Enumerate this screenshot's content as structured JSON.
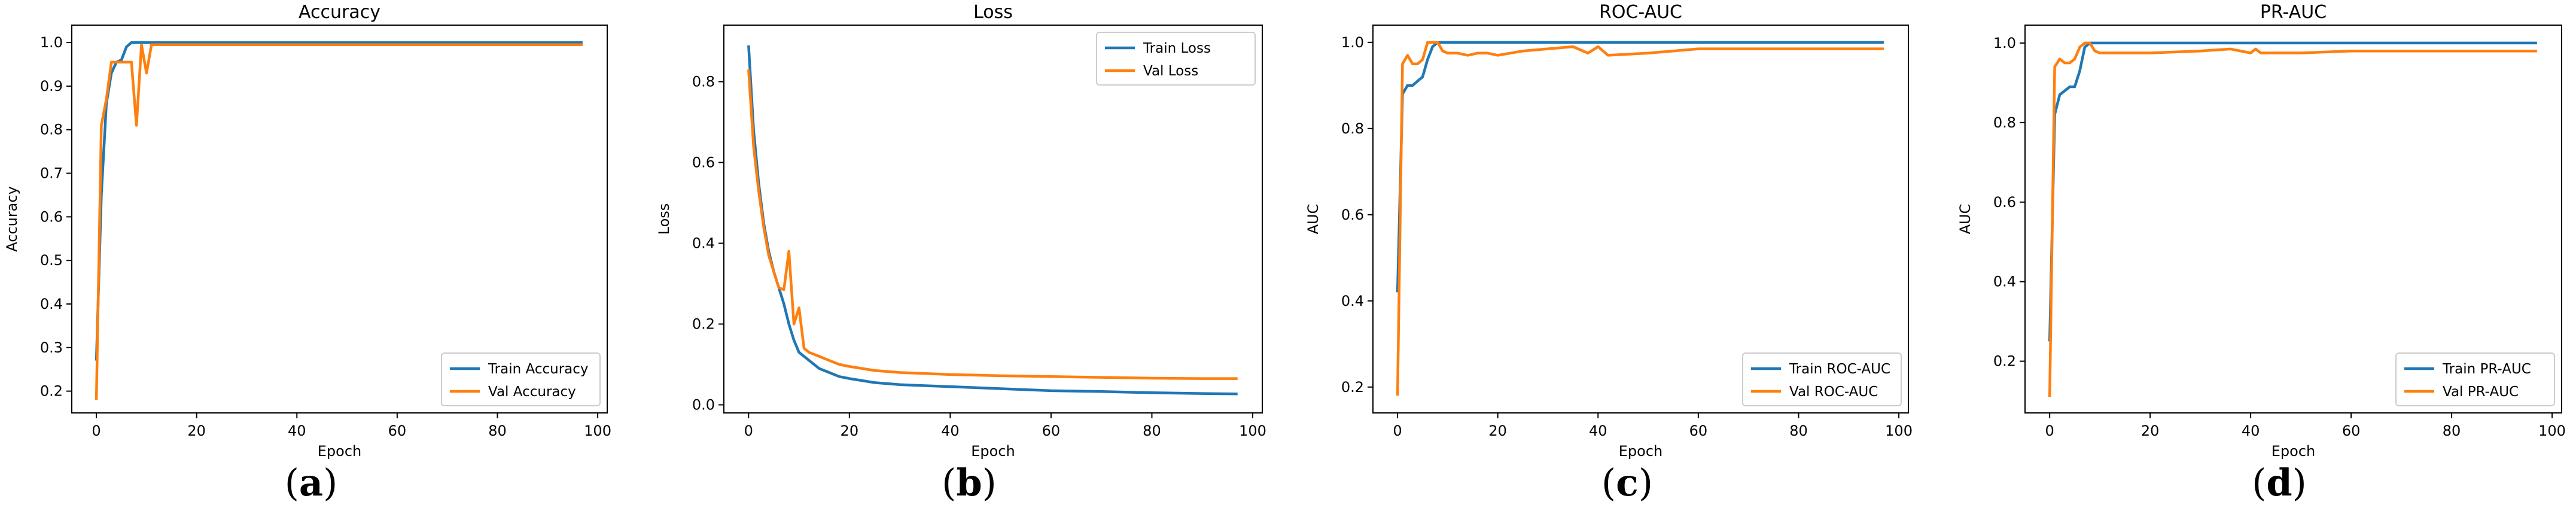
{
  "colors": {
    "train": "#1f77b4",
    "val": "#ff7f0e"
  },
  "chart_data": [
    {
      "type": "line",
      "panel_label": "a",
      "title": "Accuracy",
      "xlabel": "Epoch",
      "ylabel": "Accuracy",
      "xlim": [
        -4.9,
        101.9
      ],
      "ylim": [
        0.15,
        1.04
      ],
      "xticks": [
        0,
        20,
        40,
        60,
        80,
        100
      ],
      "yticks": [
        0.2,
        0.3,
        0.4,
        0.5,
        0.6,
        0.7,
        0.8,
        0.9,
        1.0
      ],
      "ytick_labels": [
        "0.2",
        "0.3",
        "0.4",
        "0.5",
        "0.6",
        "0.7",
        "0.8",
        "0.9",
        "1.0"
      ],
      "legend_position": "lower-right",
      "series": [
        {
          "name": "Train Accuracy",
          "color": "#1f77b4",
          "points": [
            [
              0,
              0.27
            ],
            [
              1,
              0.65
            ],
            [
              2,
              0.86
            ],
            [
              3,
              0.93
            ],
            [
              4,
              0.955
            ],
            [
              5,
              0.96
            ],
            [
              6,
              0.99
            ],
            [
              7,
              1.0
            ],
            [
              8,
              1.0
            ],
            [
              97,
              1.0
            ]
          ]
        },
        {
          "name": "Val Accuracy",
          "color": "#ff7f0e",
          "points": [
            [
              0,
              0.18
            ],
            [
              1,
              0.81
            ],
            [
              2,
              0.87
            ],
            [
              3,
              0.955
            ],
            [
              4,
              0.955
            ],
            [
              5,
              0.955
            ],
            [
              6,
              0.955
            ],
            [
              7,
              0.955
            ],
            [
              8,
              0.81
            ],
            [
              9,
              0.995
            ],
            [
              10,
              0.93
            ],
            [
              11,
              0.995
            ],
            [
              12,
              0.995
            ],
            [
              97,
              0.995
            ]
          ]
        }
      ]
    },
    {
      "type": "line",
      "panel_label": "b",
      "title": "Loss",
      "xlabel": "Epoch",
      "ylabel": "Loss",
      "xlim": [
        -4.9,
        101.9
      ],
      "ylim": [
        -0.02,
        0.94
      ],
      "xticks": [
        0,
        20,
        40,
        60,
        80,
        100
      ],
      "yticks": [
        0.0,
        0.2,
        0.4,
        0.6,
        0.8
      ],
      "ytick_labels": [
        "0.0",
        "0.2",
        "0.4",
        "0.6",
        "0.8"
      ],
      "legend_position": "upper-right",
      "series": [
        {
          "name": "Train Loss",
          "color": "#1f77b4",
          "points": [
            [
              0,
              0.89
            ],
            [
              1,
              0.68
            ],
            [
              2,
              0.55
            ],
            [
              3,
              0.45
            ],
            [
              4,
              0.38
            ],
            [
              5,
              0.33
            ],
            [
              6,
              0.29
            ],
            [
              7,
              0.25
            ],
            [
              8,
              0.2
            ],
            [
              9,
              0.16
            ],
            [
              10,
              0.13
            ],
            [
              12,
              0.11
            ],
            [
              14,
              0.09
            ],
            [
              16,
              0.08
            ],
            [
              18,
              0.07
            ],
            [
              20,
              0.065
            ],
            [
              25,
              0.055
            ],
            [
              30,
              0.05
            ],
            [
              40,
              0.045
            ],
            [
              50,
              0.04
            ],
            [
              60,
              0.035
            ],
            [
              70,
              0.033
            ],
            [
              80,
              0.03
            ],
            [
              90,
              0.028
            ],
            [
              97,
              0.027
            ]
          ]
        },
        {
          "name": "Val Loss",
          "color": "#ff7f0e",
          "points": [
            [
              0,
              0.83
            ],
            [
              1,
              0.64
            ],
            [
              2,
              0.53
            ],
            [
              3,
              0.44
            ],
            [
              4,
              0.37
            ],
            [
              5,
              0.33
            ],
            [
              6,
              0.29
            ],
            [
              7,
              0.285
            ],
            [
              8,
              0.38
            ],
            [
              9,
              0.2
            ],
            [
              10,
              0.24
            ],
            [
              11,
              0.14
            ],
            [
              12,
              0.13
            ],
            [
              14,
              0.12
            ],
            [
              16,
              0.11
            ],
            [
              18,
              0.1
            ],
            [
              20,
              0.095
            ],
            [
              25,
              0.085
            ],
            [
              30,
              0.08
            ],
            [
              40,
              0.075
            ],
            [
              50,
              0.072
            ],
            [
              60,
              0.07
            ],
            [
              70,
              0.068
            ],
            [
              80,
              0.066
            ],
            [
              90,
              0.065
            ],
            [
              97,
              0.065
            ]
          ]
        }
      ]
    },
    {
      "type": "line",
      "panel_label": "c",
      "title": "ROC-AUC",
      "xlabel": "Epoch",
      "ylabel": "AUC",
      "xlim": [
        -4.9,
        101.9
      ],
      "ylim": [
        0.14,
        1.04
      ],
      "xticks": [
        0,
        20,
        40,
        60,
        80,
        100
      ],
      "yticks": [
        0.2,
        0.4,
        0.6,
        0.8,
        1.0
      ],
      "ytick_labels": [
        "0.2",
        "0.4",
        "0.6",
        "0.8",
        "1.0"
      ],
      "legend_position": "lower-right",
      "series": [
        {
          "name": "Train ROC-AUC",
          "color": "#1f77b4",
          "points": [
            [
              0,
              0.42
            ],
            [
              1,
              0.88
            ],
            [
              2,
              0.9
            ],
            [
              3,
              0.9
            ],
            [
              4,
              0.91
            ],
            [
              5,
              0.92
            ],
            [
              6,
              0.96
            ],
            [
              7,
              0.99
            ],
            [
              8,
              1.0
            ],
            [
              97,
              1.0
            ]
          ]
        },
        {
          "name": "Val ROC-AUC",
          "color": "#ff7f0e",
          "points": [
            [
              0,
              0.18
            ],
            [
              1,
              0.95
            ],
            [
              2,
              0.97
            ],
            [
              3,
              0.95
            ],
            [
              4,
              0.95
            ],
            [
              5,
              0.96
            ],
            [
              6,
              1.0
            ],
            [
              7,
              1.0
            ],
            [
              8,
              1.0
            ],
            [
              9,
              0.98
            ],
            [
              10,
              0.975
            ],
            [
              12,
              0.975
            ],
            [
              14,
              0.97
            ],
            [
              16,
              0.975
            ],
            [
              18,
              0.975
            ],
            [
              20,
              0.97
            ],
            [
              25,
              0.98
            ],
            [
              30,
              0.985
            ],
            [
              35,
              0.99
            ],
            [
              38,
              0.975
            ],
            [
              40,
              0.99
            ],
            [
              42,
              0.97
            ],
            [
              50,
              0.975
            ],
            [
              60,
              0.985
            ],
            [
              70,
              0.985
            ],
            [
              80,
              0.985
            ],
            [
              97,
              0.985
            ]
          ]
        }
      ]
    },
    {
      "type": "line",
      "panel_label": "d",
      "title": "PR-AUC",
      "xlabel": "Epoch",
      "ylabel": "AUC",
      "xlim": [
        -4.9,
        101.9
      ],
      "ylim": [
        0.07,
        1.045
      ],
      "xticks": [
        0,
        20,
        40,
        60,
        80,
        100
      ],
      "yticks": [
        0.2,
        0.4,
        0.6,
        0.8,
        1.0
      ],
      "ytick_labels": [
        "0.2",
        "0.4",
        "0.6",
        "0.8",
        "1.0"
      ],
      "legend_position": "lower-right",
      "series": [
        {
          "name": "Train PR-AUC",
          "color": "#1f77b4",
          "points": [
            [
              0,
              0.25
            ],
            [
              1,
              0.82
            ],
            [
              2,
              0.87
            ],
            [
              3,
              0.88
            ],
            [
              4,
              0.89
            ],
            [
              5,
              0.89
            ],
            [
              6,
              0.93
            ],
            [
              7,
              0.99
            ],
            [
              8,
              1.0
            ],
            [
              97,
              1.0
            ]
          ]
        },
        {
          "name": "Val PR-AUC",
          "color": "#ff7f0e",
          "points": [
            [
              0,
              0.11
            ],
            [
              1,
              0.94
            ],
            [
              2,
              0.96
            ],
            [
              3,
              0.95
            ],
            [
              4,
              0.95
            ],
            [
              5,
              0.96
            ],
            [
              6,
              0.99
            ],
            [
              7,
              1.0
            ],
            [
              8,
              1.0
            ],
            [
              9,
              0.98
            ],
            [
              10,
              0.975
            ],
            [
              14,
              0.975
            ],
            [
              20,
              0.975
            ],
            [
              30,
              0.98
            ],
            [
              36,
              0.985
            ],
            [
              40,
              0.975
            ],
            [
              41,
              0.985
            ],
            [
              42,
              0.975
            ],
            [
              50,
              0.975
            ],
            [
              60,
              0.98
            ],
            [
              70,
              0.98
            ],
            [
              80,
              0.98
            ],
            [
              97,
              0.98
            ]
          ]
        }
      ]
    }
  ]
}
